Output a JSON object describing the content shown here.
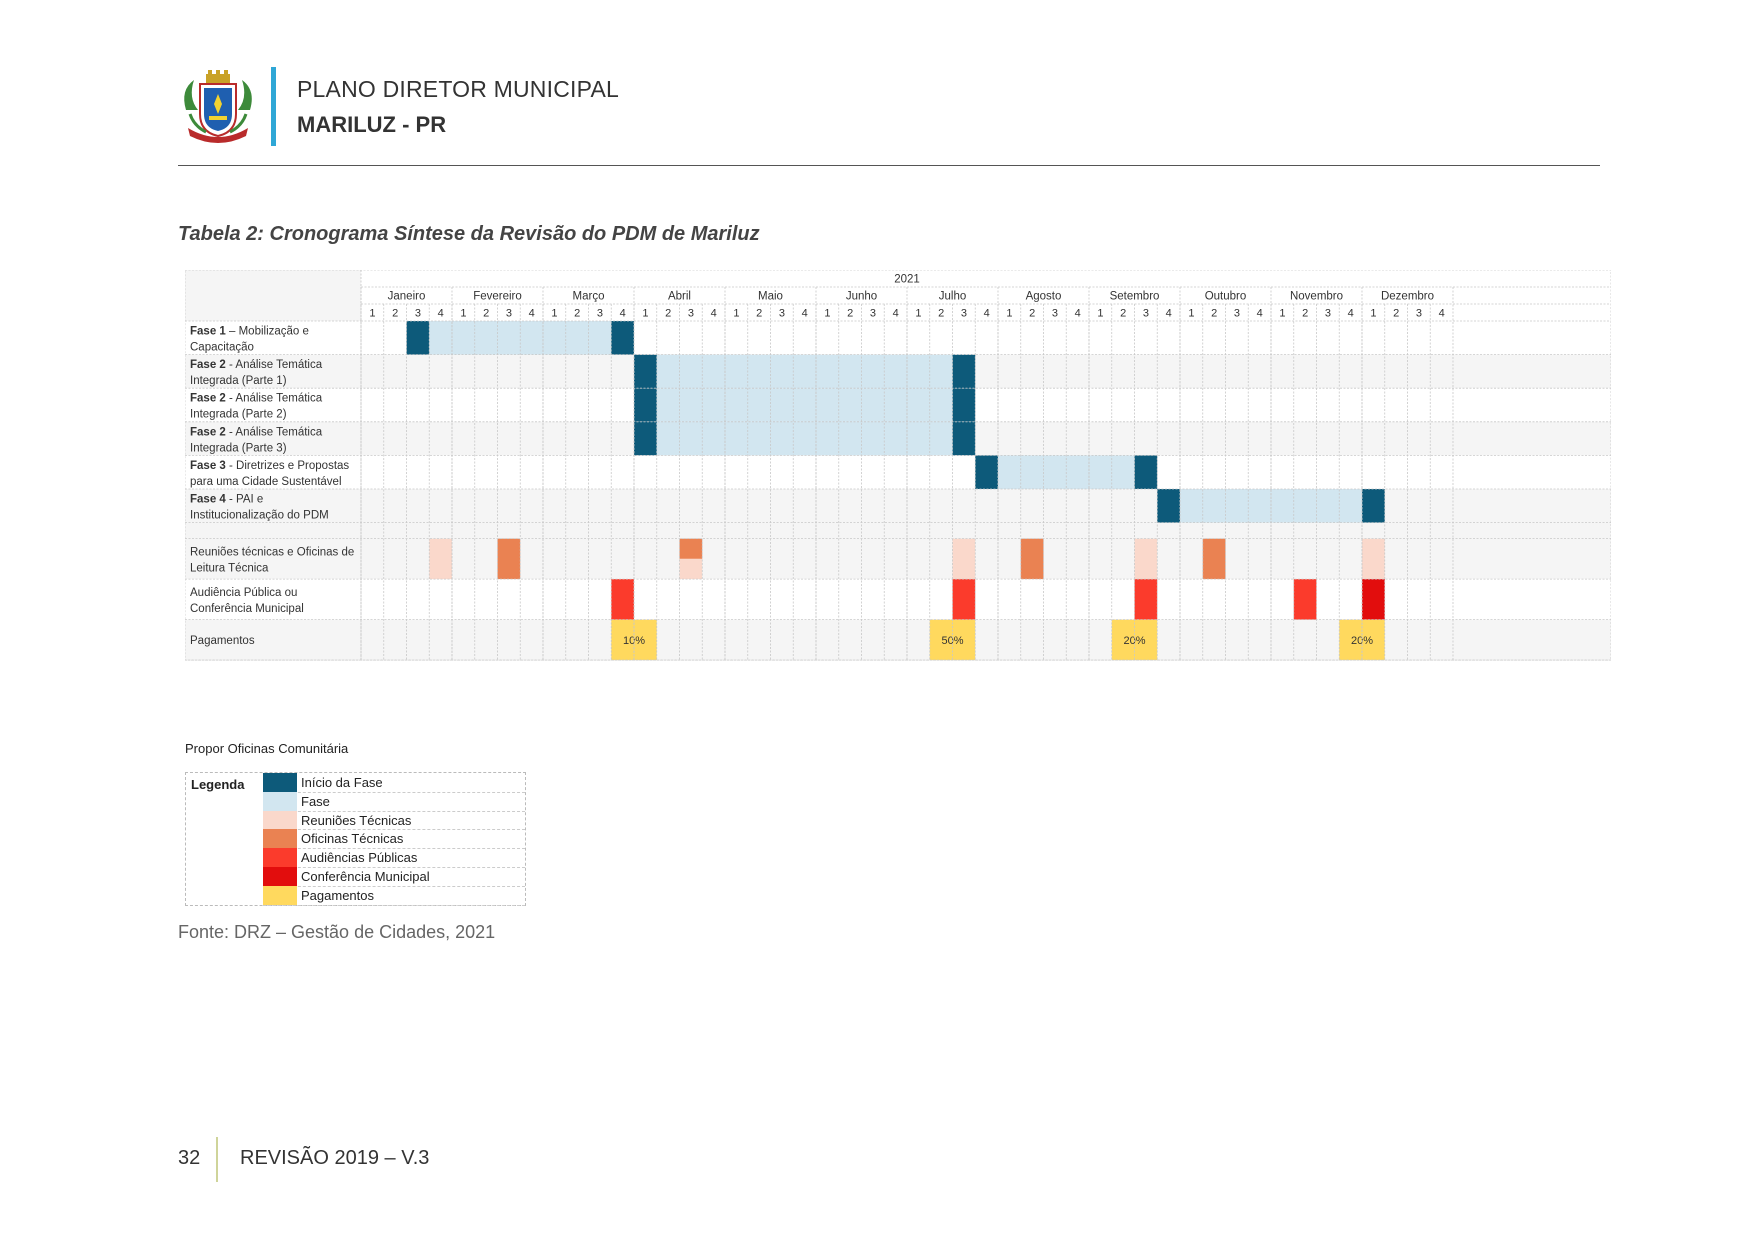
{
  "header": {
    "title": "PLANO DIRETOR MUNICIPAL",
    "subtitle": "MARILUZ - PR"
  },
  "caption": "Tabela 2: Cronograma Síntese da Revisão do PDM de Mariluz",
  "chart_data": {
    "type": "table",
    "year": "2021",
    "months": [
      "Janeiro",
      "Fevereiro",
      "Março",
      "Abril",
      "Maio",
      "Junho",
      "Julho",
      "Agosto",
      "Setembro",
      "Outubro",
      "Novembro",
      "Dezembro"
    ],
    "weeks_per_month": [
      "1",
      "2",
      "3",
      "4"
    ],
    "colors": {
      "inicio": "#0d5a7a",
      "fase": "#d2e6f0",
      "reuniao": "#fad8cb",
      "oficina": "#ea8252",
      "audiencia": "#fb3b2c",
      "conferencia": "#e20d0d",
      "pagamento": "#ffd95e"
    },
    "phases": [
      {
        "bold": "Fase 1",
        "text": " – Mobilização e",
        "text2": "Capacitação",
        "start": 3,
        "end": 12
      },
      {
        "bold": "Fase 2",
        "text": " - Análise Temática",
        "text2": "Integrada (Parte 1)",
        "start": 13,
        "end": 27
      },
      {
        "bold": "Fase 2",
        "text": " - Análise Temática",
        "text2": "Integrada (Parte 2)",
        "start": 13,
        "end": 27
      },
      {
        "bold": "Fase 2",
        "text": " - Análise Temática",
        "text2": "Integrada (Parte 3)",
        "start": 13,
        "end": 27
      },
      {
        "bold": "Fase 3",
        "text": " - Diretrizes e Propostas",
        "text2": "para uma Cidade Sustentável",
        "start": 28,
        "end": 35
      },
      {
        "bold": "Fase 4",
        "text": " - PAI e",
        "text2": "Institucionalização do PDM",
        "start": 36,
        "end": 45
      }
    ],
    "events": [
      {
        "label1": "Reuniões técnicas e Oficinas de",
        "label2": "Leitura Técnica",
        "cells": [
          {
            "week": 4,
            "kind": "reuniao"
          },
          {
            "week": 7,
            "kind": "oficina"
          },
          {
            "week": 15,
            "kind": "oficina",
            "half": "top"
          },
          {
            "week": 15,
            "kind": "reuniao",
            "half": "bottom"
          },
          {
            "week": 27,
            "kind": "reuniao"
          },
          {
            "week": 30,
            "kind": "oficina"
          },
          {
            "week": 35,
            "kind": "reuniao"
          },
          {
            "week": 38,
            "kind": "oficina"
          },
          {
            "week": 45,
            "kind": "reuniao"
          }
        ]
      },
      {
        "label1": "Audiência Pública ou",
        "label2": "Conferência Municipal",
        "cells": [
          {
            "week": 12,
            "kind": "audiencia"
          },
          {
            "week": 27,
            "kind": "audiencia"
          },
          {
            "week": 35,
            "kind": "audiencia"
          },
          {
            "week": 42,
            "kind": "audiencia"
          },
          {
            "week": 45,
            "kind": "conferencia"
          }
        ]
      }
    ],
    "payments": {
      "label": "Pagamentos",
      "items": [
        {
          "start": 12,
          "end": 13,
          "value": "10%"
        },
        {
          "start": 26,
          "end": 27,
          "value": "50%"
        },
        {
          "start": 34,
          "end": 35,
          "value": "20%"
        },
        {
          "start": 44,
          "end": 45,
          "value": "20%"
        }
      ]
    }
  },
  "note": "Propor Oficinas Comunitária",
  "legend": {
    "title": "Legenda",
    "items": [
      {
        "label": "Início da Fase",
        "color": "#0d5a7a"
      },
      {
        "label": "Fase",
        "color": "#d2e6f0"
      },
      {
        "label": "Reuniões Técnicas",
        "color": "#fad8cb"
      },
      {
        "label": "Oficinas Técnicas",
        "color": "#ea8252"
      },
      {
        "label": "Audiências Públicas",
        "color": "#fb3b2c"
      },
      {
        "label": "Conferência Municipal",
        "color": "#e20d0d"
      },
      {
        "label": "Pagamentos",
        "color": "#ffd95e"
      }
    ]
  },
  "source": "Fonte: DRZ – Gestão de Cidades, 2021",
  "footer": {
    "page": "32",
    "revision": "REVISÃO 2019 – V.3"
  }
}
